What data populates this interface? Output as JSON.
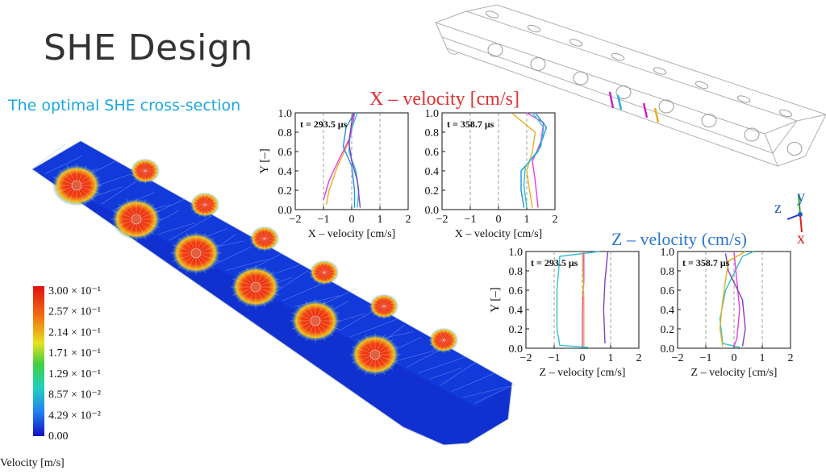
{
  "slide": {
    "title": "SHE Design",
    "subtitle": "The optimal SHE cross-section"
  },
  "colors": {
    "title": "#333333",
    "subtitle": "#1aa7e0",
    "x_velocity_title": "#e03030",
    "z_velocity_title": "#2a78d0",
    "flow_base": "#1030d0",
    "flow_hot": "#e82010"
  },
  "legend": {
    "title": "Velocity [m/s]",
    "labels": [
      "3.00 × 10⁻¹",
      "2.57 × 10⁻¹",
      "2.14 × 10⁻¹",
      "1.71 × 10⁻¹",
      "1.29 × 10⁻¹",
      "8.57 × 10⁻²",
      "4.29 × 10⁻²",
      "0.00"
    ]
  },
  "axes_triad": {
    "y": "y",
    "z": "z",
    "x": "x"
  },
  "x_velocity": {
    "group_title": "X – velocity [cm/s]",
    "plots": [
      {
        "time": "t = 293.5 μs",
        "xlabel": "X – velocity [cm/s]",
        "ylabel": "Y [–]",
        "xticks": [
          "−2",
          "−1",
          "0",
          "1",
          "2"
        ],
        "yticks": [
          "0.0",
          "0.2",
          "0.4",
          "0.6",
          "0.8",
          "1.0"
        ]
      },
      {
        "time": "t = 358.7 μs",
        "xlabel": "X – velocity [cm/s]",
        "ylabel": "",
        "xticks": [
          "−2",
          "−1",
          "0",
          "1",
          "2"
        ],
        "yticks": [
          "0.0",
          "0.2",
          "0.4",
          "0.6",
          "0.8",
          "1.0"
        ]
      }
    ]
  },
  "z_velocity": {
    "group_title": "Z – velocity (cm/s)",
    "plots": [
      {
        "time": "t = 293.5 μs",
        "xlabel": "Z – velocity [cm/s]",
        "ylabel": "Y [–]",
        "xticks": [
          "−2",
          "−1",
          "0",
          "1",
          "2"
        ],
        "yticks": [
          "0.0",
          "0.2",
          "0.4",
          "0.6",
          "0.8",
          "1.0"
        ]
      },
      {
        "time": "t = 358.7 μs",
        "xlabel": "Z – velocity [cm/s]",
        "ylabel": "",
        "xticks": [
          "−2",
          "−1",
          "0",
          "1",
          "2"
        ],
        "yticks": [
          "0.0",
          "0.2",
          "0.4",
          "0.6",
          "0.8",
          "1.0"
        ]
      }
    ]
  }
}
